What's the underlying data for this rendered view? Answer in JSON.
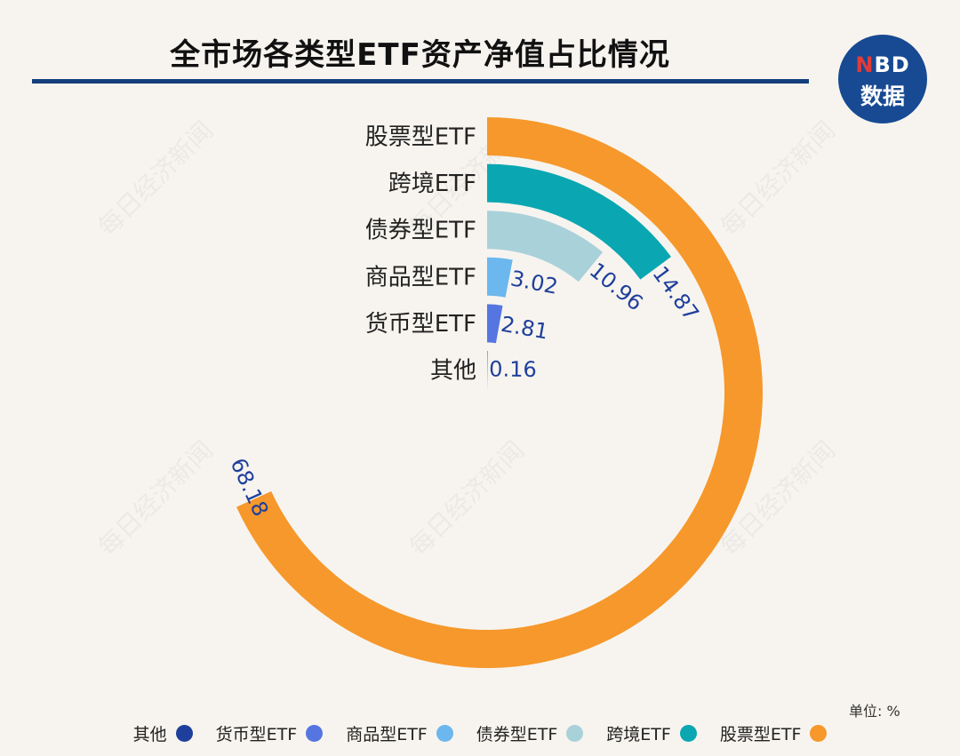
{
  "title": "全市场各类型ETF资产净值占比情况",
  "logo": {
    "brand_n": "N",
    "brand_rest": "BD",
    "line2": "数据"
  },
  "unit_label": "单位: %",
  "watermark": "每日经济新闻",
  "chart_data": {
    "type": "radial-bar",
    "title": "全市场各类型ETF资产净值占比情况",
    "unit": "%",
    "categories": [
      "股票型ETF",
      "跨境ETF",
      "债券型ETF",
      "商品型ETF",
      "货币型ETF",
      "其他"
    ],
    "values": [
      68.18,
      14.87,
      10.96,
      3.02,
      2.81,
      0.16
    ],
    "value_labels": [
      "68.18",
      "14.87",
      "10.96",
      "3.02",
      "2.81",
      "0.16"
    ],
    "colors": [
      "#f6982b",
      "#0aa7b2",
      "#a9d1da",
      "#6bb7ee",
      "#5575e1",
      "#1f3f9c"
    ],
    "legend": {
      "placement": "bottom",
      "labels": [
        "其他",
        "货币型ETF",
        "商品型ETF",
        "债券型ETF",
        "跨境ETF",
        "股票型ETF"
      ],
      "colors": [
        "#1f3f9c",
        "#5575e1",
        "#6bb7ee",
        "#a9d1da",
        "#0aa7b2",
        "#f6982b"
      ]
    }
  }
}
